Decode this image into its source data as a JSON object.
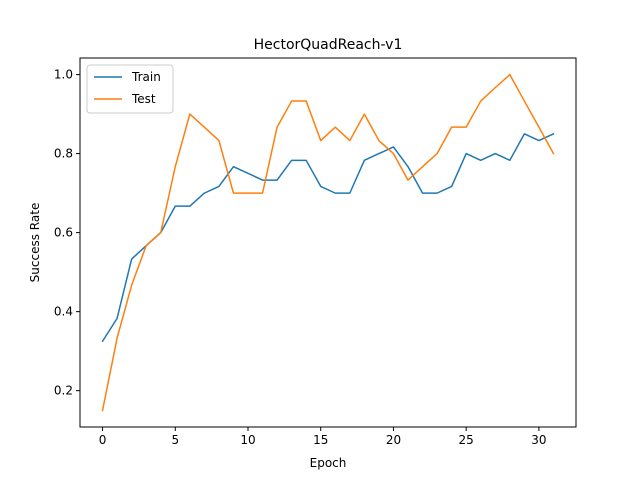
{
  "chart_data": {
    "type": "line",
    "title": "HectorQuadReach-v1",
    "xlabel": "Epoch",
    "ylabel": "Success Rate",
    "xlim": [
      -1.55,
      32.55
    ],
    "ylim": [
      0.108,
      1.042
    ],
    "xticks": [
      0,
      5,
      10,
      15,
      20,
      25,
      30
    ],
    "yticks": [
      0.2,
      0.4,
      0.6,
      0.8,
      1.0
    ],
    "ytick_labels": [
      "0.2",
      "0.4",
      "0.6",
      "0.8",
      "1.0"
    ],
    "grid": false,
    "legend_position": "top-left",
    "x": [
      0,
      1,
      2,
      3,
      4,
      5,
      6,
      7,
      8,
      9,
      10,
      11,
      12,
      13,
      14,
      15,
      16,
      17,
      18,
      19,
      20,
      21,
      22,
      23,
      24,
      25,
      26,
      27,
      28,
      29,
      30,
      31
    ],
    "series": [
      {
        "name": "Train",
        "color": "#1f77b4",
        "values": [
          0.325,
          0.383,
          0.533,
          0.567,
          0.6,
          0.667,
          0.667,
          0.7,
          0.717,
          0.767,
          0.75,
          0.733,
          0.733,
          0.783,
          0.783,
          0.717,
          0.7,
          0.7,
          0.783,
          0.8,
          0.817,
          0.767,
          0.7,
          0.7,
          0.717,
          0.8,
          0.783,
          0.8,
          0.783,
          0.85,
          0.833,
          0.85
        ]
      },
      {
        "name": "Test",
        "color": "#ff7f0e",
        "values": [
          0.15,
          0.333,
          0.467,
          0.567,
          0.6,
          0.767,
          0.9,
          0.867,
          0.833,
          0.7,
          0.7,
          0.7,
          0.867,
          0.933,
          0.933,
          0.833,
          0.867,
          0.833,
          0.9,
          0.833,
          0.8,
          0.733,
          0.767,
          0.8,
          0.867,
          0.867,
          0.933,
          0.967,
          1.0,
          0.933,
          0.867,
          0.8
        ]
      }
    ]
  }
}
